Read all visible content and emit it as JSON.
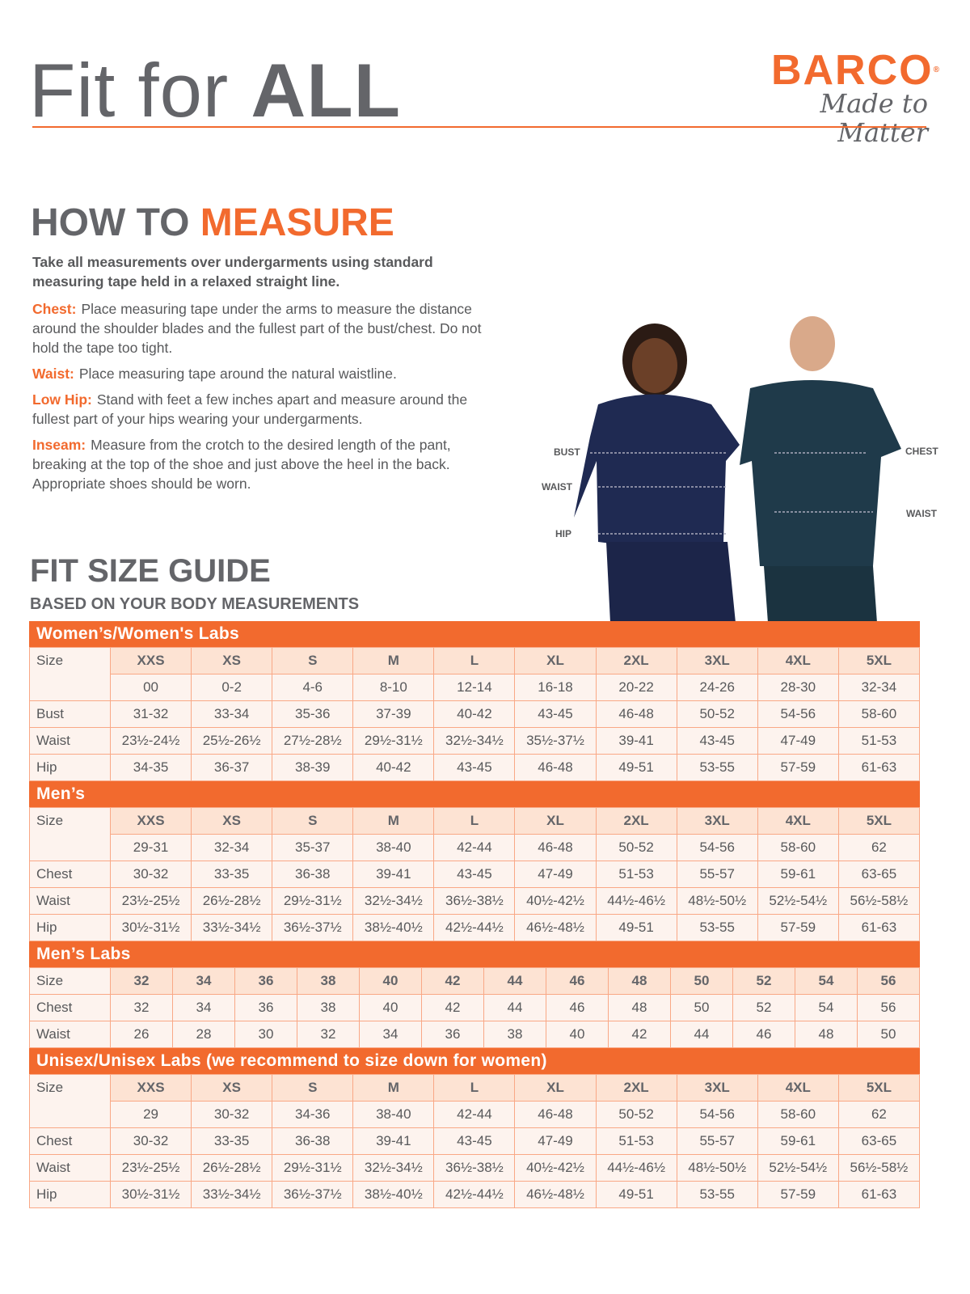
{
  "header": {
    "title_light": "Fit for ",
    "title_bold": "ALL",
    "brand": "BARCO",
    "registered": "®",
    "tagline": "Made to Matter"
  },
  "how": {
    "title_a": "HOW TO ",
    "title_b": "MEASURE",
    "intro": "Take all measurements over undergarments using standard measuring tape held in a relaxed straight line.",
    "items": [
      {
        "label": "Chest:",
        "text": "Place measuring tape under the arms to measure the distance around the shoulder blades and the fullest part of the bust/chest. Do not hold the tape too tight."
      },
      {
        "label": "Waist:",
        "text": "Place measuring tape around the natural waistline."
      },
      {
        "label": "Low Hip:",
        "text": "Stand with feet a few inches apart and measure around the fullest part of your hips wearing your undergarments."
      },
      {
        "label": "Inseam:",
        "text": "Measure from the crotch to the desired length of the pant, breaking at the top of the shoe and just above the heel in the back. Appropriate shoes should be worn."
      }
    ]
  },
  "figure": {
    "labels": {
      "bust": "BUST",
      "waist_w": "WAIST",
      "hip": "HIP",
      "chest": "CHEST",
      "waist_m": "WAIST"
    }
  },
  "guide": {
    "title": "FIT SIZE GUIDE",
    "subtitle": "BASED ON YOUR BODY MEASUREMENTS"
  },
  "sections": [
    {
      "title": "Women’s/Women's Labs",
      "size_label": "Size",
      "sizes": [
        "XXS",
        "XS",
        "S",
        "M",
        "L",
        "XL",
        "2XL",
        "3XL",
        "4XL",
        "5XL"
      ],
      "sub": [
        "00",
        "0-2",
        "4-6",
        "8-10",
        "12-14",
        "16-18",
        "20-22",
        "24-26",
        "28-30",
        "32-34"
      ],
      "rows": [
        {
          "label": "Bust",
          "values": [
            "31-32",
            "33-34",
            "35-36",
            "37-39",
            "40-42",
            "43-45",
            "46-48",
            "50-52",
            "54-56",
            "58-60"
          ]
        },
        {
          "label": "Waist",
          "values": [
            "23½-24½",
            "25½-26½",
            "27½-28½",
            "29½-31½",
            "32½-34½",
            "35½-37½",
            "39-41",
            "43-45",
            "47-49",
            "51-53"
          ]
        },
        {
          "label": "Hip",
          "values": [
            "34-35",
            "36-37",
            "38-39",
            "40-42",
            "43-45",
            "46-48",
            "49-51",
            "53-55",
            "57-59",
            "61-63"
          ]
        }
      ]
    },
    {
      "title": "Men’s",
      "size_label": "Size",
      "sizes": [
        "XXS",
        "XS",
        "S",
        "M",
        "L",
        "XL",
        "2XL",
        "3XL",
        "4XL",
        "5XL"
      ],
      "sub": [
        "29-31",
        "32-34",
        "35-37",
        "38-40",
        "42-44",
        "46-48",
        "50-52",
        "54-56",
        "58-60",
        "62"
      ],
      "rows": [
        {
          "label": "Chest",
          "values": [
            "30-32",
            "33-35",
            "36-38",
            "39-41",
            "43-45",
            "47-49",
            "51-53",
            "55-57",
            "59-61",
            "63-65"
          ]
        },
        {
          "label": "Waist",
          "values": [
            "23½-25½",
            "26½-28½",
            "29½-31½",
            "32½-34½",
            "36½-38½",
            "40½-42½",
            "44½-46½",
            "48½-50½",
            "52½-54½",
            "56½-58½"
          ]
        },
        {
          "label": "Hip",
          "values": [
            "30½-31½",
            "33½-34½",
            "36½-37½",
            "38½-40½",
            "42½-44½",
            "46½-48½",
            "49-51",
            "53-55",
            "57-59",
            "61-63"
          ]
        }
      ]
    },
    {
      "title": "Men’s Labs",
      "size_label": "Size",
      "sizes": [
        "32",
        "34",
        "36",
        "38",
        "40",
        "42",
        "44",
        "46",
        "48",
        "50",
        "52",
        "54",
        "56"
      ],
      "rows": [
        {
          "label": "Chest",
          "values": [
            "32",
            "34",
            "36",
            "38",
            "40",
            "42",
            "44",
            "46",
            "48",
            "50",
            "52",
            "54",
            "56"
          ]
        },
        {
          "label": "Waist",
          "values": [
            "26",
            "28",
            "30",
            "32",
            "34",
            "36",
            "38",
            "40",
            "42",
            "44",
            "46",
            "48",
            "50"
          ]
        }
      ]
    },
    {
      "title": "Unisex/Unisex Labs (we recommend to size down for women)",
      "size_label": "Size",
      "sizes": [
        "XXS",
        "XS",
        "S",
        "M",
        "L",
        "XL",
        "2XL",
        "3XL",
        "4XL",
        "5XL"
      ],
      "sub": [
        "29",
        "30-32",
        "34-36",
        "38-40",
        "42-44",
        "46-48",
        "50-52",
        "54-56",
        "58-60",
        "62"
      ],
      "rows": [
        {
          "label": "Chest",
          "values": [
            "30-32",
            "33-35",
            "36-38",
            "39-41",
            "43-45",
            "47-49",
            "51-53",
            "55-57",
            "59-61",
            "63-65"
          ]
        },
        {
          "label": "Waist",
          "values": [
            "23½-25½",
            "26½-28½",
            "29½-31½",
            "32½-34½",
            "36½-38½",
            "40½-42½",
            "44½-46½",
            "48½-50½",
            "52½-54½",
            "56½-58½"
          ]
        },
        {
          "label": "Hip",
          "values": [
            "30½-31½",
            "33½-34½",
            "36½-37½",
            "38½-40½",
            "42½-44½",
            "46½-48½",
            "49-51",
            "53-55",
            "57-59",
            "61-63"
          ]
        }
      ]
    }
  ],
  "colors": {
    "accent": "#f26a2e",
    "heading": "#646569",
    "cell": "#fdf3ee",
    "header_cell": "#fde3d3",
    "scrubs": "#1f2a52"
  }
}
